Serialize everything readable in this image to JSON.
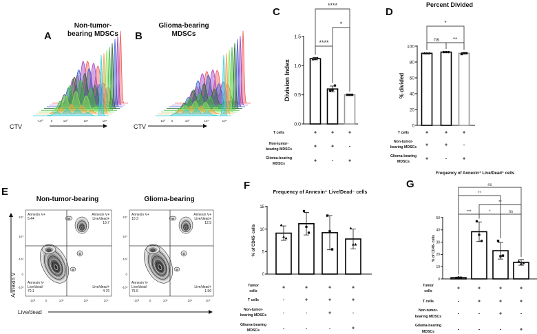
{
  "panels": {
    "A": {
      "letter": "A",
      "title_lines": [
        "Non-tumor-",
        "bearing MDSCs"
      ],
      "axis_label": "CTV",
      "ticks": [
        "-10³",
        "0",
        "10³",
        "10⁴",
        "10⁵"
      ]
    },
    "B": {
      "letter": "B",
      "title_lines": [
        "Glioma-bearing",
        "MDSCs"
      ],
      "axis_label": "CTV",
      "ticks": [
        "-10³",
        "0",
        "10³",
        "10⁴",
        "10⁵"
      ]
    },
    "E": {
      "letter": "E",
      "y_axis_label": "Annexin V",
      "x_axis_label": "Live/dead",
      "x_ticks": [
        "-10³",
        "0",
        "10³",
        "10⁴",
        "10⁵"
      ],
      "y_ticks": [
        "10⁵",
        "10⁴",
        "10³",
        "0",
        "-10³"
      ],
      "plots": [
        {
          "title": "Non-tumor-bearing",
          "ul": [
            "Annexin V+",
            "5.44"
          ],
          "ur": [
            "Annexin V+",
            "Live/dead+",
            "19.7"
          ],
          "ll": [
            "Annexin V-",
            "Live/dead-",
            "70.1"
          ],
          "lr": [
            "Live/dead+",
            "4.76"
          ]
        },
        {
          "title": "Glioma-bearing",
          "ul": [
            "Annexin V+",
            "10.3"
          ],
          "ur": [
            "Annexin V+",
            "Live/dead+",
            "12.5"
          ],
          "ll": [
            "Annexin V-",
            "Live/dead-",
            "75.6"
          ],
          "lr": [
            "Live/dead+",
            "1.56"
          ]
        }
      ]
    },
    "histogram_colors": [
      "#f05a5a",
      "#a040c0",
      "#3a5fd0",
      "#306830",
      "#40c040",
      "#90e060",
      "#f0a040",
      "#30d0e0"
    ]
  },
  "chart_data": [
    {
      "panel": "C",
      "letter": "C",
      "type": "bar",
      "title": "",
      "ylabel": "Division Index",
      "ylim": [
        0,
        1.5
      ],
      "yticks": [
        0,
        0.5,
        1.0,
        1.5
      ],
      "ytick_labels": [
        "0.0",
        "0.5",
        "1.0",
        "1.5"
      ],
      "values": [
        1.12,
        0.6,
        0.5
      ],
      "sd": [
        0.02,
        0.05,
        0.01
      ],
      "points": [
        [
          1.11,
          1.12,
          1.13
        ],
        [
          0.57,
          0.58,
          0.66
        ],
        [
          0.5,
          0.5,
          0.5
        ]
      ],
      "bar_edge_colors": [
        "#000000",
        "#000000",
        "#999999"
      ],
      "conditions": [
        {
          "label_lines": [
            "T cells"
          ],
          "signs": [
            "+",
            "+",
            "+"
          ]
        },
        {
          "label_lines": [
            "Non-tumor-",
            "bearing MDSCs"
          ],
          "signs": [
            "+",
            "+",
            "-"
          ]
        },
        {
          "label_lines": [
            "Glioma-bearing",
            "MDSCs"
          ],
          "signs": [
            "+",
            "-",
            "+"
          ]
        }
      ],
      "comparisons": [
        {
          "a": 0,
          "b": 1,
          "label": "****"
        },
        {
          "a": 1,
          "b": 2,
          "label": "*"
        },
        {
          "a": 0,
          "b": 2,
          "label": "****"
        }
      ]
    },
    {
      "panel": "D",
      "letter": "D",
      "type": "bar",
      "title": "Percent Divided",
      "ylabel": "% divided",
      "ylim": [
        0,
        100
      ],
      "yticks": [
        0,
        20,
        40,
        60,
        80,
        100
      ],
      "ytick_labels": [
        "0",
        "20",
        "40",
        "60",
        "80",
        "100"
      ],
      "values": [
        91,
        92.5,
        91
      ],
      "sd": [
        0.5,
        0.5,
        0.8
      ],
      "points": [
        [
          91,
          91,
          91
        ],
        [
          92.5,
          92.5,
          92.5
        ],
        [
          90,
          91,
          91
        ]
      ],
      "bar_edge_colors": [
        "#000000",
        "#000000",
        "#999999"
      ],
      "conditions": [
        {
          "label_lines": [
            "T cells"
          ],
          "signs": [
            "+",
            "+",
            "+"
          ]
        },
        {
          "label_lines": [
            "Non-tumor-",
            "bearing MDSCs"
          ],
          "signs": [
            "+",
            "+",
            "-"
          ]
        },
        {
          "label_lines": [
            "Glioma-bearing",
            "MDSCs"
          ],
          "signs": [
            "+",
            "-",
            "+"
          ]
        }
      ],
      "comparisons": [
        {
          "a": 0,
          "b": 1,
          "label": "ns"
        },
        {
          "a": 1,
          "b": 2,
          "label": "**"
        },
        {
          "a": 0,
          "b": 2,
          "label": "*"
        }
      ]
    },
    {
      "panel": "F",
      "letter": "F",
      "type": "bar",
      "title": "Frequency of Annexin⁺ Live/Dead⁻ cells",
      "ylabel": "% of CD45- cells",
      "ylim": [
        0,
        15
      ],
      "yticks": [
        0,
        5,
        10,
        15
      ],
      "ytick_labels": [
        "0",
        "5",
        "10",
        "15"
      ],
      "values": [
        9.1,
        11.2,
        9.2,
        7.8
      ],
      "sd": [
        1.6,
        2.5,
        3.8,
        2.2
      ],
      "points": [
        [
          10.9,
          8.3,
          8.0
        ],
        [
          14.0,
          10.5,
          9.2
        ],
        [
          13.0,
          9.5,
          5.5
        ],
        [
          10.2,
          6.6,
          6.6
        ]
      ],
      "bar_edge_colors": [
        "#000000",
        "#000000",
        "#000000",
        "#000000"
      ],
      "conditions": [
        {
          "label_lines": [
            "Tumor",
            "cells"
          ],
          "signs": [
            "+",
            "+",
            "+",
            "+"
          ]
        },
        {
          "label_lines": [
            "T cells"
          ],
          "signs": [
            "-",
            "+",
            "+",
            "+"
          ]
        },
        {
          "label_lines": [
            "Non-tumor-",
            "bearing MDSCs"
          ],
          "signs": [
            "-",
            "-",
            "+",
            "-"
          ]
        },
        {
          "label_lines": [
            "Glioma-bearing",
            "MDSCs"
          ],
          "signs": [
            "-",
            "-",
            "-",
            "+"
          ]
        }
      ],
      "comparisons": []
    },
    {
      "panel": "G",
      "letter": "G",
      "type": "bar",
      "title": "Frequency of Annexin⁺ Live/Dead⁺ cells",
      "ylabel": "% of CD45- cells",
      "ylim": [
        0,
        50
      ],
      "yticks": [
        0,
        10,
        20,
        30,
        40,
        50
      ],
      "ytick_labels": [
        "0",
        "10",
        "20",
        "30",
        "40",
        "50"
      ],
      "values": [
        1.0,
        38.5,
        23.0,
        13.5
      ],
      "sd": [
        0.4,
        8.0,
        6.8,
        2.3
      ],
      "points": [
        [
          0.8,
          1.2,
          1.0
        ],
        [
          47,
          36,
          31
        ],
        [
          31,
          18.5,
          19
        ],
        [
          14.5,
          12.5,
          13
        ]
      ],
      "bar_edge_colors": [
        "#000000",
        "#000000",
        "#000000",
        "#000000"
      ],
      "conditions": [
        {
          "label_lines": [
            "Tumor",
            "cells"
          ],
          "signs": [
            "+",
            "+",
            "+",
            "+"
          ]
        },
        {
          "label_lines": [
            "T cells"
          ],
          "signs": [
            "-",
            "+",
            "+",
            "+"
          ]
        },
        {
          "label_lines": [
            "Non-tumor-",
            "bearing MDSCs"
          ],
          "signs": [
            "-",
            "-",
            "+",
            "-"
          ]
        },
        {
          "label_lines": [
            "Glioma-bearing",
            "MDSCs"
          ],
          "signs": [
            "-",
            "-",
            "-",
            "+"
          ]
        }
      ],
      "comparisons": [
        {
          "a": 0,
          "b": 3,
          "label": "ns"
        },
        {
          "a": 0,
          "b": 2,
          "label": "**"
        },
        {
          "a": 1,
          "b": 3,
          "label": "**"
        },
        {
          "a": 0,
          "b": 1,
          "label": "***"
        },
        {
          "a": 1,
          "b": 2,
          "label": "*"
        },
        {
          "a": 2,
          "b": 3,
          "label": "ns"
        }
      ]
    }
  ]
}
